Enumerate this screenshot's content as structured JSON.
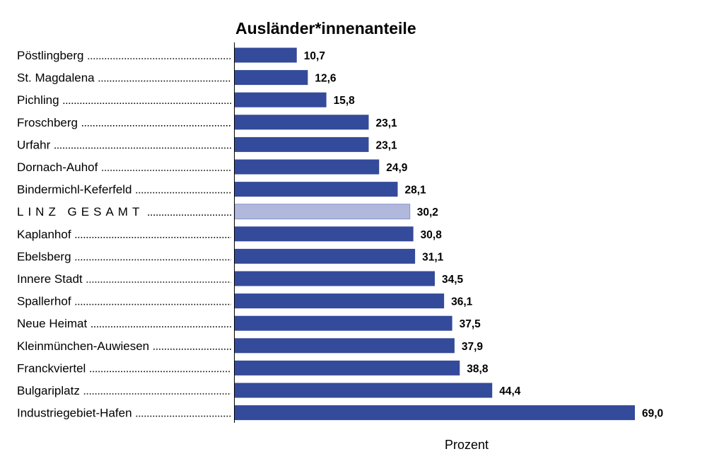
{
  "chart_data": {
    "type": "bar",
    "orientation": "horizontal",
    "title": "Ausländer*innenanteile",
    "xlabel": "Prozent",
    "ylabel": "",
    "xlim": [
      0,
      69
    ],
    "grid": false,
    "bar_color": "#344a9a",
    "highlight_color": "#b0b8dc",
    "highlight_category": "LINZ GESAMT",
    "categories": [
      "Pöstlingberg",
      "St. Magdalena",
      "Pichling",
      "Froschberg",
      "Urfahr",
      "Dornach-Auhof",
      "Bindermichl-Keferfeld",
      "LINZ GESAMT",
      "Kaplanhof",
      "Ebelsberg",
      "Innere Stadt",
      "Spallerhof",
      "Neue Heimat",
      "Kleinmünchen-Auwiesen",
      "Franckviertel",
      "Bulgariplatz",
      "Industriegebiet-Hafen"
    ],
    "values": [
      10.7,
      12.6,
      15.8,
      23.1,
      23.1,
      24.9,
      28.1,
      30.2,
      30.8,
      31.1,
      34.5,
      36.1,
      37.5,
      37.9,
      38.8,
      44.4,
      69.0
    ],
    "value_labels": [
      "10,7",
      "12,6",
      "15,8",
      "23,1",
      "23,1",
      "24,9",
      "28,1",
      "30,2",
      "30,8",
      "31,1",
      "34,5",
      "36,1",
      "37,5",
      "37,9",
      "38,8",
      "44,4",
      "69,0"
    ]
  }
}
